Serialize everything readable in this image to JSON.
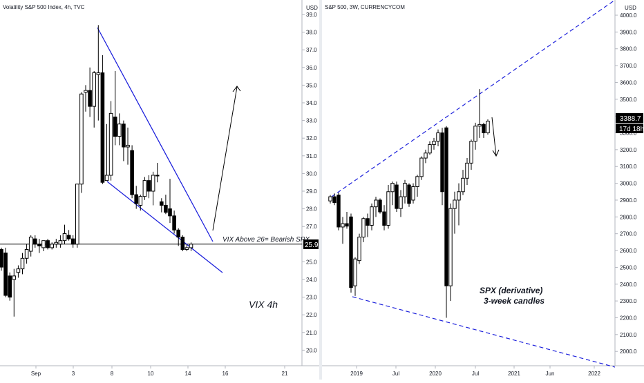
{
  "chart_data": [
    {
      "type": "candlestick",
      "title": "Volatility S&P 500 Index, 4h, TVC",
      "currency": "USD",
      "ylim": [
        19.0,
        39.6
      ],
      "y_ticks": [
        20.0,
        21.0,
        22.0,
        23.0,
        24.0,
        25.0,
        26.0,
        27.0,
        28.0,
        29.0,
        30.0,
        31.0,
        32.0,
        33.0,
        34.0,
        35.0,
        36.0,
        37.0,
        38.0,
        39.0
      ],
      "x_ticks": [
        "Sep",
        "3",
        "8",
        "10",
        "14",
        "16",
        "21"
      ],
      "price_label": "25.9",
      "horizontal_line": 26.0,
      "annotations": [
        "VIX Above 26= Bearish SPX",
        "VIX 4h"
      ],
      "candles": [
        {
          "o": 25.7,
          "h": 25.8,
          "l": 24.5,
          "c": 24.7
        },
        {
          "o": 25.5,
          "h": 25.8,
          "l": 23.0,
          "c": 23.1
        },
        {
          "o": 24.2,
          "h": 24.4,
          "l": 22.8,
          "c": 23.0
        },
        {
          "o": 24.0,
          "h": 24.6,
          "l": 21.9,
          "c": 24.2
        },
        {
          "o": 24.4,
          "h": 24.8,
          "l": 24.1,
          "c": 24.6
        },
        {
          "o": 24.6,
          "h": 25.5,
          "l": 24.3,
          "c": 25.2
        },
        {
          "o": 25.2,
          "h": 26.0,
          "l": 24.9,
          "c": 25.7
        },
        {
          "o": 25.6,
          "h": 26.5,
          "l": 25.3,
          "c": 26.4
        },
        {
          "o": 26.3,
          "h": 26.5,
          "l": 25.8,
          "c": 26.0
        },
        {
          "o": 26.0,
          "h": 26.3,
          "l": 25.5,
          "c": 25.9
        },
        {
          "o": 25.8,
          "h": 26.2,
          "l": 25.6,
          "c": 26.2
        },
        {
          "o": 26.2,
          "h": 26.3,
          "l": 25.7,
          "c": 25.8
        },
        {
          "o": 25.8,
          "h": 26.1,
          "l": 25.7,
          "c": 26.0
        },
        {
          "o": 26.0,
          "h": 26.3,
          "l": 25.8,
          "c": 26.1
        },
        {
          "o": 26.0,
          "h": 26.5,
          "l": 25.8,
          "c": 26.2
        },
        {
          "o": 26.2,
          "h": 27.1,
          "l": 26.0,
          "c": 26.6
        },
        {
          "o": 26.5,
          "h": 26.8,
          "l": 26.2,
          "c": 26.3
        },
        {
          "o": 26.3,
          "h": 26.5,
          "l": 25.8,
          "c": 26.0
        },
        {
          "o": 26.0,
          "h": 29.4,
          "l": 25.8,
          "c": 29.4
        },
        {
          "o": 29.4,
          "h": 34.6,
          "l": 28.9,
          "c": 34.5
        },
        {
          "o": 34.6,
          "h": 35.0,
          "l": 33.5,
          "c": 34.7
        },
        {
          "o": 34.7,
          "h": 36.0,
          "l": 33.2,
          "c": 33.8
        },
        {
          "o": 33.8,
          "h": 35.8,
          "l": 32.6,
          "c": 35.7
        },
        {
          "o": 35.6,
          "h": 38.4,
          "l": 33.0,
          "c": 35.7
        },
        {
          "o": 35.7,
          "h": 36.7,
          "l": 29.4,
          "c": 29.5
        },
        {
          "o": 29.6,
          "h": 32.8,
          "l": 29.6,
          "c": 29.9
        },
        {
          "o": 29.9,
          "h": 34.1,
          "l": 29.6,
          "c": 33.4
        },
        {
          "o": 33.2,
          "h": 35.8,
          "l": 31.6,
          "c": 32.1
        },
        {
          "o": 32.1,
          "h": 33.4,
          "l": 31.6,
          "c": 32.8
        },
        {
          "o": 32.8,
          "h": 33.0,
          "l": 30.7,
          "c": 31.5
        },
        {
          "o": 31.5,
          "h": 32.6,
          "l": 30.5,
          "c": 31.6
        },
        {
          "o": 31.3,
          "h": 31.6,
          "l": 28.6,
          "c": 28.8
        },
        {
          "o": 28.8,
          "h": 29.3,
          "l": 28.0,
          "c": 28.3
        },
        {
          "o": 28.2,
          "h": 28.8,
          "l": 27.9,
          "c": 28.7
        },
        {
          "o": 28.7,
          "h": 29.8,
          "l": 28.5,
          "c": 29.6
        },
        {
          "o": 29.6,
          "h": 29.9,
          "l": 28.6,
          "c": 29.0
        },
        {
          "o": 29.0,
          "h": 30.1,
          "l": 28.2,
          "c": 29.9
        },
        {
          "o": 29.9,
          "h": 30.6,
          "l": 29.5,
          "c": 29.9
        },
        {
          "o": 28.4,
          "h": 28.6,
          "l": 27.8,
          "c": 28.2
        },
        {
          "o": 28.2,
          "h": 28.8,
          "l": 27.7,
          "c": 27.8
        },
        {
          "o": 28.0,
          "h": 29.7,
          "l": 27.2,
          "c": 27.6
        },
        {
          "o": 27.6,
          "h": 27.9,
          "l": 26.6,
          "c": 26.8
        },
        {
          "o": 26.8,
          "h": 26.9,
          "l": 25.9,
          "c": 26.4
        },
        {
          "o": 26.4,
          "h": 26.5,
          "l": 25.6,
          "c": 25.7
        },
        {
          "o": 25.7,
          "h": 26.0,
          "l": 25.6,
          "c": 25.8
        },
        {
          "o": 25.8,
          "h": 26.1,
          "l": 25.6,
          "c": 26.0
        }
      ]
    },
    {
      "type": "candlestick",
      "title": "S&P 500, 3W, CURRENCYCOM",
      "currency": "USD",
      "ylim": [
        1840,
        4100
      ],
      "y_ticks": [
        2000.0,
        2100.0,
        2200.0,
        2300.0,
        2400.0,
        2500.0,
        2600.0,
        2700.0,
        2800.0,
        2900.0,
        3000.0,
        3100.0,
        3200.0,
        3300.0,
        3400.0,
        3500.0,
        3600.0,
        3700.0,
        3800.0,
        3900.0,
        4000.0
      ],
      "x_ticks": [
        "2019",
        "Jul",
        "2020",
        "Jul",
        "2021",
        "Jun",
        "2022"
      ],
      "price_label": "3388.7",
      "time_label": "17d 18h",
      "annotations": [
        "SPX (derivative)",
        "3-week candles"
      ],
      "candles": [
        {
          "o": 2895,
          "h": 2930,
          "l": 2880,
          "c": 2920
        },
        {
          "o": 2920,
          "h": 2940,
          "l": 2870,
          "c": 2885
        },
        {
          "o": 2930,
          "h": 2945,
          "l": 2720,
          "c": 2740
        },
        {
          "o": 2740,
          "h": 2800,
          "l": 2640,
          "c": 2760
        },
        {
          "o": 2760,
          "h": 2830,
          "l": 2730,
          "c": 2745
        },
        {
          "o": 2800,
          "h": 2820,
          "l": 2350,
          "c": 2380
        },
        {
          "o": 2390,
          "h": 2560,
          "l": 2330,
          "c": 2550
        },
        {
          "o": 2540,
          "h": 2700,
          "l": 2520,
          "c": 2680
        },
        {
          "o": 2680,
          "h": 2800,
          "l": 2650,
          "c": 2790
        },
        {
          "o": 2790,
          "h": 2820,
          "l": 2680,
          "c": 2750
        },
        {
          "o": 2750,
          "h": 2880,
          "l": 2720,
          "c": 2860
        },
        {
          "o": 2860,
          "h": 2920,
          "l": 2800,
          "c": 2900
        },
        {
          "o": 2900,
          "h": 2910,
          "l": 2820,
          "c": 2830
        },
        {
          "o": 2830,
          "h": 2870,
          "l": 2720,
          "c": 2750
        },
        {
          "o": 2750,
          "h": 2990,
          "l": 2730,
          "c": 2950
        },
        {
          "o": 2950,
          "h": 3010,
          "l": 2870,
          "c": 3000
        },
        {
          "o": 2990,
          "h": 3010,
          "l": 2830,
          "c": 2850
        },
        {
          "o": 2850,
          "h": 2960,
          "l": 2800,
          "c": 2920
        },
        {
          "o": 2920,
          "h": 3020,
          "l": 2880,
          "c": 3000
        },
        {
          "o": 2990,
          "h": 3000,
          "l": 2860,
          "c": 2880
        },
        {
          "o": 2900,
          "h": 3000,
          "l": 2880,
          "c": 2980
        },
        {
          "o": 2980,
          "h": 3050,
          "l": 2920,
          "c": 3040
        },
        {
          "o": 3040,
          "h": 3160,
          "l": 3020,
          "c": 3150
        },
        {
          "o": 3150,
          "h": 3200,
          "l": 3120,
          "c": 3180
        },
        {
          "o": 3180,
          "h": 3250,
          "l": 3170,
          "c": 3230
        },
        {
          "o": 3230,
          "h": 3270,
          "l": 3200,
          "c": 3250
        },
        {
          "o": 3250,
          "h": 3320,
          "l": 3220,
          "c": 3300
        },
        {
          "o": 3300,
          "h": 3330,
          "l": 2870,
          "c": 2950
        },
        {
          "o": 3330,
          "h": 3340,
          "l": 2200,
          "c": 2390
        },
        {
          "o": 2390,
          "h": 2880,
          "l": 2300,
          "c": 2850
        },
        {
          "o": 2850,
          "h": 2950,
          "l": 2700,
          "c": 2900
        },
        {
          "o": 2900,
          "h": 3000,
          "l": 2750,
          "c": 2950
        },
        {
          "o": 2950,
          "h": 3080,
          "l": 2930,
          "c": 3030
        },
        {
          "o": 3030,
          "h": 3150,
          "l": 2990,
          "c": 3120
        },
        {
          "o": 3120,
          "h": 3260,
          "l": 3080,
          "c": 3250
        },
        {
          "o": 3250,
          "h": 3360,
          "l": 3200,
          "c": 3340
        },
        {
          "o": 3340,
          "h": 3560,
          "l": 3270,
          "c": 3350
        },
        {
          "o": 3350,
          "h": 3360,
          "l": 3270,
          "c": 3300
        },
        {
          "o": 3300,
          "h": 3380,
          "l": 3290,
          "c": 3370
        }
      ]
    }
  ]
}
